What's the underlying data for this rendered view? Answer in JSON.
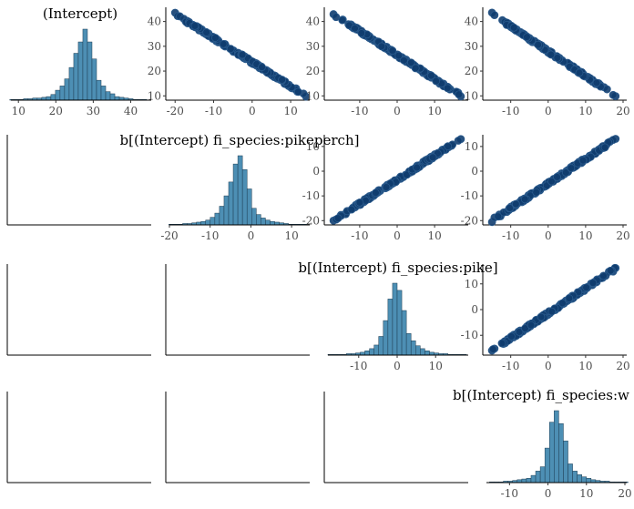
{
  "colors": {
    "hist_fill": "#4d8fb4",
    "hist_stroke": "#1d3c52",
    "point_fill": "#0f3c6e",
    "point_stroke": "#2a5a8c",
    "axis": "#000000",
    "tick_label": "#4d4d4d"
  },
  "chart_data": {
    "type": "pairs",
    "variables": [
      {
        "name": "(Intercept)",
        "label": "(Intercept)",
        "range": [
          8,
          45
        ],
        "ticks": [
          10,
          20,
          30,
          40
        ],
        "mean": 26,
        "sd": 2.8
      },
      {
        "name": "fi_species:pikeperch",
        "label": "b[(Intercept) fi_species:pikeperch]",
        "range": [
          -20,
          14
        ],
        "ticks": [
          -20,
          -10,
          0,
          10
        ],
        "mean": -3.2,
        "sd": 2.8
      },
      {
        "name": "fi_species:pike",
        "label": "b[(Intercept) fi_species:pike]",
        "range": [
          -18,
          18
        ],
        "ticks": [
          -10,
          0,
          10
        ],
        "mean": 0,
        "sd": 2.8
      },
      {
        "name": "fi_species:w",
        "label": "b[(Intercept) fi_species:w",
        "range": [
          -16,
          20
        ],
        "ticks": [
          -10,
          0,
          10,
          20
        ],
        "mean": 2.8,
        "sd": 2.8
      }
    ],
    "histograms": [
      {
        "variable": "(Intercept)",
        "bin_width": 1.22,
        "counts": [
          1,
          1,
          1,
          2,
          2,
          3,
          3,
          4,
          5,
          8,
          14,
          20,
          30,
          46,
          66,
          82,
          100,
          82,
          58,
          28,
          20,
          12,
          9,
          5,
          4,
          3,
          2,
          1,
          1,
          1
        ]
      },
      {
        "variable": "fi_species:pikeperch",
        "bin_width": 1.13,
        "counts": [
          1,
          1,
          1,
          2,
          2,
          3,
          4,
          5,
          7,
          11,
          17,
          27,
          42,
          62,
          88,
          100,
          80,
          52,
          24,
          15,
          10,
          7,
          5,
          4,
          3,
          2,
          1,
          1,
          1,
          1
        ]
      },
      {
        "variable": "fi_species:pike",
        "bin_width": 1.2,
        "counts": [
          1,
          1,
          1,
          1,
          2,
          2,
          3,
          4,
          6,
          9,
          14,
          26,
          48,
          78,
          100,
          90,
          62,
          30,
          20,
          13,
          9,
          6,
          4,
          3,
          2,
          2,
          1,
          1,
          1,
          1
        ]
      },
      {
        "variable": "fi_species:w",
        "bin_width": 1.2,
        "counts": [
          1,
          1,
          1,
          2,
          2,
          3,
          4,
          5,
          6,
          10,
          16,
          22,
          48,
          84,
          100,
          82,
          58,
          26,
          16,
          11,
          8,
          6,
          4,
          3,
          2,
          2,
          1,
          1,
          1,
          1
        ]
      }
    ],
    "scatter": [
      {
        "x": "fi_species:pikeperch",
        "y": "(Intercept)",
        "x_range": [
          -20,
          14
        ],
        "y_range": [
          10,
          43
        ],
        "ticks_x": [
          -20,
          -10,
          0,
          10
        ],
        "ticks_y": [
          10,
          20,
          30,
          40
        ],
        "xlim": [
          -21,
          14
        ],
        "ylim": [
          9,
          45
        ]
      },
      {
        "x": "fi_species:pike",
        "y": "(Intercept)",
        "x_range": [
          -17,
          17
        ],
        "y_range": [
          10,
          43
        ],
        "ticks_x": [
          -10,
          0,
          10
        ],
        "ticks_y": [
          10,
          20,
          30,
          40
        ],
        "xlim": [
          -18,
          18
        ],
        "ylim": [
          9,
          45
        ]
      },
      {
        "x": "fi_species:w",
        "y": "(Intercept)",
        "x_range": [
          -15,
          18
        ],
        "y_range": [
          10,
          43
        ],
        "ticks_x": [
          -10,
          0,
          10,
          20
        ],
        "ticks_y": [
          10,
          20,
          30,
          40
        ],
        "xlim": [
          -16,
          20
        ],
        "ylim": [
          9,
          45
        ]
      },
      {
        "x": "fi_species:pike",
        "y": "fi_species:pikeperch",
        "x_range": [
          -17,
          17
        ],
        "y_range": [
          -20,
          13
        ],
        "ticks_x": [
          -10,
          0,
          10
        ],
        "ticks_y": [
          -20,
          -10,
          0,
          10
        ],
        "xlim": [
          -18,
          18
        ],
        "ylim": [
          -21,
          14
        ]
      },
      {
        "x": "fi_species:w",
        "y": "fi_species:pikeperch",
        "x_range": [
          -15,
          18
        ],
        "y_range": [
          -20,
          13
        ],
        "ticks_x": [
          -10,
          0,
          10,
          20
        ],
        "ticks_y": [
          -20,
          -10,
          0,
          10
        ],
        "xlim": [
          -16,
          20
        ],
        "ylim": [
          -21,
          14
        ]
      },
      {
        "x": "fi_species:w",
        "y": "fi_species:pike",
        "x_range": [
          -15,
          18
        ],
        "y_range": [
          -16,
          16
        ],
        "ticks_x": [
          -10,
          0,
          10,
          20
        ],
        "ticks_y": [
          -10,
          0,
          10
        ],
        "xlim": [
          -16,
          20
        ],
        "ylim": [
          -17,
          17
        ]
      }
    ],
    "empty_panels": [
      {
        "row": 1,
        "col": 0
      },
      {
        "row": 2,
        "col": 0
      },
      {
        "row": 2,
        "col": 1
      },
      {
        "row": 3,
        "col": 0
      },
      {
        "row": 3,
        "col": 1
      },
      {
        "row": 3,
        "col": 2
      }
    ]
  }
}
